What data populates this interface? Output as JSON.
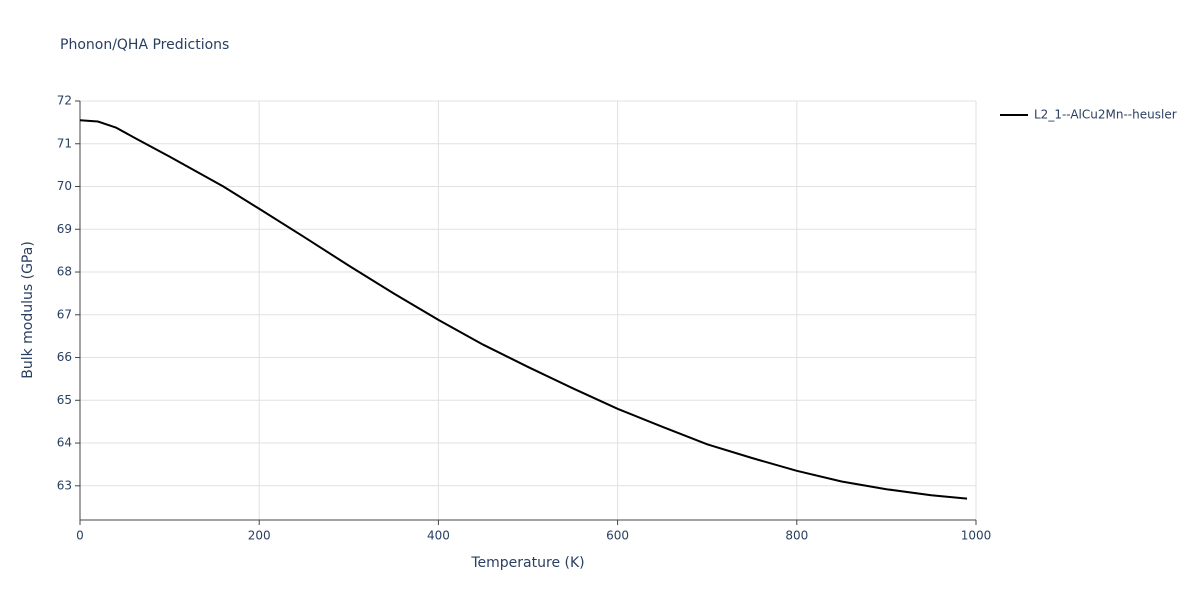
{
  "chart_data": {
    "type": "line",
    "title": "Phonon/QHA Predictions",
    "x_label": "Temperature (K)",
    "y_label": "Bulk modulus (GPa)",
    "x": [
      0,
      20,
      40,
      60,
      100,
      160,
      200,
      250,
      300,
      350,
      400,
      450,
      500,
      550,
      600,
      650,
      700,
      750,
      800,
      850,
      900,
      950,
      990
    ],
    "series": [
      {
        "name": "L2_1--AlCu2Mn--heusler",
        "color": "#000000",
        "values": [
          71.55,
          71.52,
          71.38,
          71.15,
          70.7,
          70.0,
          69.48,
          68.82,
          68.15,
          67.5,
          66.88,
          66.3,
          65.78,
          65.28,
          64.8,
          64.38,
          63.97,
          63.65,
          63.35,
          63.1,
          62.92,
          62.78,
          62.7
        ]
      }
    ],
    "xlim": [
      0,
      1000
    ],
    "xticks": [
      0,
      200,
      400,
      600,
      800,
      1000
    ],
    "ylim": [
      62.2,
      72
    ],
    "yticks": [
      63,
      64,
      65,
      66,
      67,
      68,
      69,
      70,
      71,
      72
    ],
    "grid": true,
    "legend": "right"
  }
}
